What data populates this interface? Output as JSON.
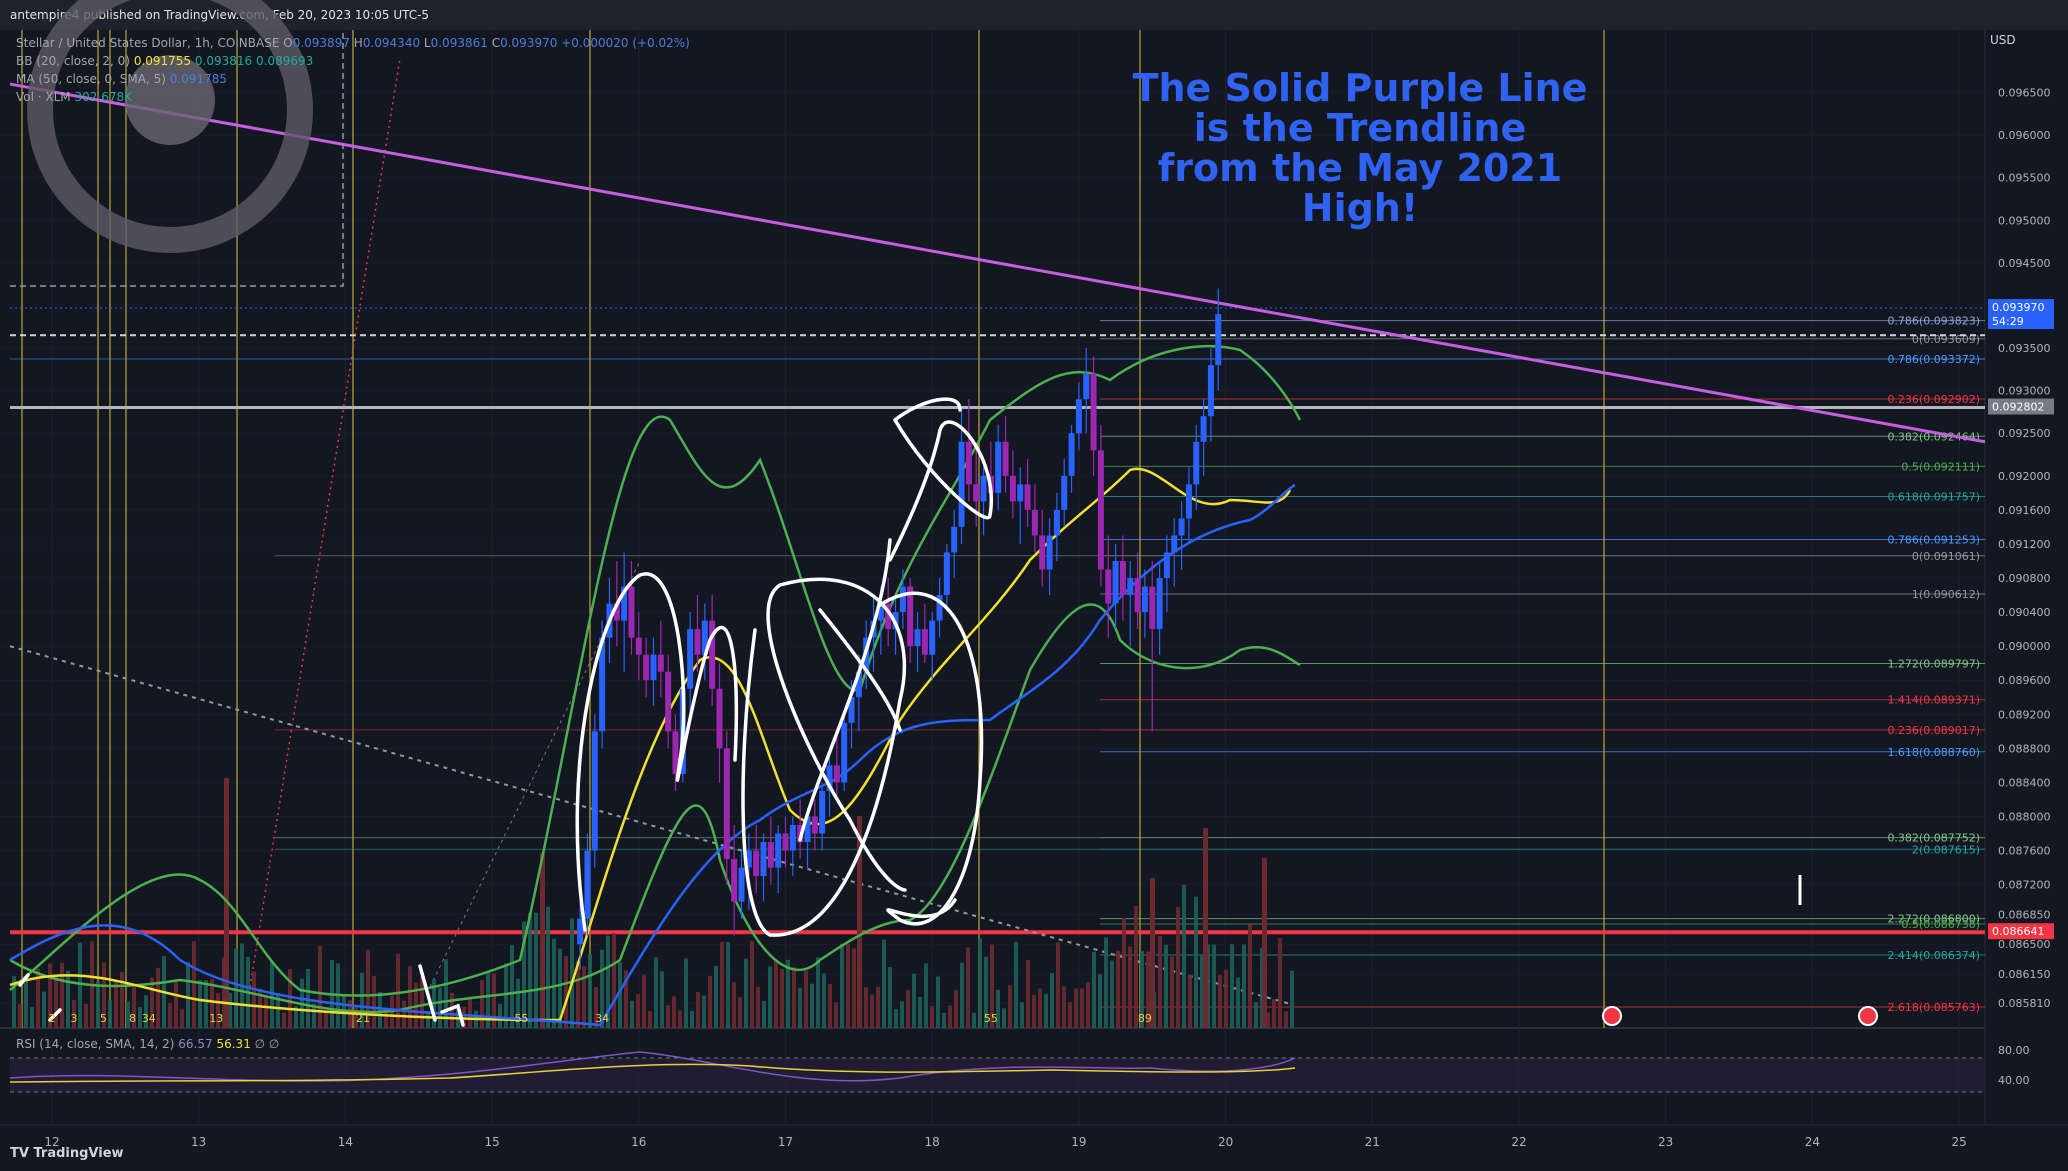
{
  "header": {
    "published": "antempire4 published on TradingView.com, Feb 20, 2023 10:05 UTC-5"
  },
  "legend": {
    "symbol": "Stellar / United States Dollar, 1h, COINBASE",
    "ohlc": {
      "o": "0.093897",
      "h": "0.094340",
      "l": "0.093861",
      "c": "0.093970",
      "change": "+0.000020 (+0.02%)"
    },
    "bb": {
      "label": "BB (20, close, 2, 0)",
      "basis": "0.091755",
      "upper": "0.093816",
      "lower": "0.089693"
    },
    "ma": {
      "label": "MA (50, close, 0, SMA, 5)",
      "value": "0.091785"
    },
    "vol": {
      "label": "Vol · XLM",
      "value": "302.678K"
    }
  },
  "rsi": {
    "label": "RSI (14, close, SMA, 14, 2)",
    "v1": "66.57",
    "v2": "56.31",
    "extra": "∅  ∅",
    "ticks": [
      "80.00",
      "40.00"
    ]
  },
  "annotation": {
    "lines": [
      "The Solid Purple Line",
      "is the Trendline",
      "from the May 2021",
      "High!"
    ]
  },
  "footer": {
    "brand": "TradingView"
  },
  "colors": {
    "bg": "#131722",
    "purple_trend": "#c65ee0",
    "annotation": "#2f62f0",
    "up": "#2962ff",
    "down": "#b22833",
    "bb": "#4caf50",
    "ma": "#f0e130",
    "ma2": "#2962ff"
  },
  "chart_data": {
    "type": "candlestick",
    "currency": "USD",
    "price_axis": {
      "ticks": [
        "0.096500",
        "0.096000",
        "0.095500",
        "0.095000",
        "0.094500",
        "0.093500",
        "0.093000",
        "0.092500",
        "0.092000",
        "0.091600",
        "0.091200",
        "0.090800",
        "0.090400",
        "0.090000",
        "0.089600",
        "0.089200",
        "0.088800",
        "0.088400",
        "0.088000",
        "0.087600",
        "0.087200",
        "0.086850",
        "0.086500",
        "0.086150",
        "0.085810"
      ],
      "range": [
        0.0858,
        0.097
      ]
    },
    "price_tags": [
      {
        "label": "0.093970",
        "sub": "54:29",
        "color": "#2962ff"
      },
      {
        "label": "0.092802",
        "color": "#787b86"
      },
      {
        "label": "0.086641",
        "color": "#f23645"
      }
    ],
    "time_axis": {
      "ticks": [
        "12",
        "13",
        "14",
        "15",
        "16",
        "17",
        "18",
        "19",
        "20",
        "21",
        "22",
        "23",
        "24",
        "25"
      ]
    },
    "fib_labels": [
      {
        "text": "0.786(0.093823)",
        "price": 0.093823,
        "color": "#8fa5d8"
      },
      {
        "text": "0(0.093609)",
        "price": 0.093609,
        "color": "#9598a1"
      },
      {
        "text": "0.786(0.093372)",
        "price": 0.093372,
        "color": "#4c9aff"
      },
      {
        "text": "0.236(0.092902)",
        "price": 0.092902,
        "color": "#f23645"
      },
      {
        "text": "0.382(0.092464)",
        "price": 0.092464,
        "color": "#81c784"
      },
      {
        "text": "0.5(0.092111)",
        "price": 0.092111,
        "color": "#4caf50"
      },
      {
        "text": "0.618(0.091757)",
        "price": 0.091757,
        "color": "#26a69a"
      },
      {
        "text": "0.786(0.091253)",
        "price": 0.091253,
        "color": "#4c9aff"
      },
      {
        "text": "0(0.091061)",
        "price": 0.091061,
        "color": "#9598a1"
      },
      {
        "text": "1(0.090612)",
        "price": 0.090612,
        "color": "#9598a1"
      },
      {
        "text": "1.272(0.089797)",
        "price": 0.089797,
        "color": "#81c784"
      },
      {
        "text": "1.414(0.089371)",
        "price": 0.089371,
        "color": "#f23645"
      },
      {
        "text": "0.236(0.089017)",
        "price": 0.089017,
        "color": "#f23645"
      },
      {
        "text": "1.618(0.088760)",
        "price": 0.08876,
        "color": "#4c9aff"
      },
      {
        "text": "0.382(0.087752)",
        "price": 0.087752,
        "color": "#81c784"
      },
      {
        "text": "2(0.087615)",
        "price": 0.087615,
        "color": "#26a69a"
      },
      {
        "text": "2.272(0.086800)",
        "price": 0.0868,
        "color": "#81c784"
      },
      {
        "text": "0.5(0.086738)",
        "price": 0.086738,
        "color": "#4caf50"
      },
      {
        "text": "2.414(0.086374)",
        "price": 0.086374,
        "color": "#26a69a"
      },
      {
        "text": "2.618(0.085763)",
        "price": 0.085763,
        "color": "#f23645"
      }
    ],
    "fib_counts": [
      {
        "text": "2",
        "day": 12.0
      },
      {
        "text": "3",
        "day": 12.15
      },
      {
        "text": "5",
        "day": 12.35
      },
      {
        "text": "8",
        "day": 12.55
      },
      {
        "text": "34",
        "day": 12.66
      },
      {
        "text": "13",
        "day": 13.12
      },
      {
        "text": "21",
        "day": 14.12
      },
      {
        "text": "55",
        "day": 15.2
      },
      {
        "text": "34",
        "day": 15.75
      },
      {
        "text": "55",
        "day": 18.4
      },
      {
        "text": "89",
        "day": 19.45
      }
    ],
    "candles": [
      [
        15.6,
        0.0865,
        0.087,
        0.0862,
        0.0868
      ],
      [
        15.65,
        0.0868,
        0.0878,
        0.0866,
        0.0876
      ],
      [
        15.7,
        0.0876,
        0.0892,
        0.0874,
        0.089
      ],
      [
        15.75,
        0.089,
        0.0903,
        0.0888,
        0.0901
      ],
      [
        15.8,
        0.0901,
        0.0908,
        0.0898,
        0.0905
      ],
      [
        15.85,
        0.0905,
        0.091,
        0.09,
        0.0903
      ],
      [
        15.9,
        0.0903,
        0.0911,
        0.0897,
        0.0907
      ],
      [
        15.95,
        0.0907,
        0.091,
        0.0899,
        0.0901
      ],
      [
        16.0,
        0.0901,
        0.0904,
        0.0896,
        0.0899
      ],
      [
        16.05,
        0.0899,
        0.0901,
        0.0894,
        0.0896
      ],
      [
        16.1,
        0.0896,
        0.0901,
        0.0893,
        0.0899
      ],
      [
        16.15,
        0.0899,
        0.0903,
        0.0894,
        0.0897
      ],
      [
        16.2,
        0.0897,
        0.0899,
        0.0888,
        0.089
      ],
      [
        16.25,
        0.089,
        0.0892,
        0.0883,
        0.0885
      ],
      [
        16.3,
        0.0885,
        0.0897,
        0.0884,
        0.0895
      ],
      [
        16.35,
        0.0895,
        0.0904,
        0.0892,
        0.0902
      ],
      [
        16.4,
        0.0902,
        0.0906,
        0.0897,
        0.0899
      ],
      [
        16.45,
        0.0899,
        0.0905,
        0.0896,
        0.0903
      ],
      [
        16.5,
        0.0903,
        0.0906,
        0.0893,
        0.0895
      ],
      [
        16.55,
        0.0895,
        0.0898,
        0.0884,
        0.0888
      ],
      [
        16.6,
        0.0888,
        0.089,
        0.0872,
        0.0875
      ],
      [
        16.65,
        0.0875,
        0.0879,
        0.0866,
        0.087
      ],
      [
        16.7,
        0.087,
        0.0876,
        0.0868,
        0.0874
      ],
      [
        16.75,
        0.0874,
        0.0878,
        0.0869,
        0.0876
      ],
      [
        16.8,
        0.0876,
        0.0879,
        0.0871,
        0.0873
      ],
      [
        16.85,
        0.0873,
        0.0878,
        0.087,
        0.0877
      ],
      [
        16.9,
        0.0877,
        0.088,
        0.0872,
        0.0874
      ],
      [
        16.95,
        0.0874,
        0.0879,
        0.0871,
        0.0878
      ],
      [
        17.0,
        0.0878,
        0.088,
        0.0874,
        0.0876
      ],
      [
        17.05,
        0.0876,
        0.088,
        0.0873,
        0.0879
      ],
      [
        17.1,
        0.0879,
        0.0882,
        0.0875,
        0.0877
      ],
      [
        17.15,
        0.0877,
        0.0881,
        0.0874,
        0.088
      ],
      [
        17.2,
        0.088,
        0.0882,
        0.0876,
        0.0878
      ],
      [
        17.25,
        0.0878,
        0.0884,
        0.0876,
        0.0883
      ],
      [
        17.3,
        0.0883,
        0.0887,
        0.088,
        0.0886
      ],
      [
        17.35,
        0.0886,
        0.089,
        0.0882,
        0.0884
      ],
      [
        17.4,
        0.0884,
        0.0892,
        0.0883,
        0.0891
      ],
      [
        17.45,
        0.0891,
        0.0896,
        0.0888,
        0.0894
      ],
      [
        17.5,
        0.0894,
        0.0899,
        0.089,
        0.0897
      ],
      [
        17.55,
        0.0897,
        0.0903,
        0.0895,
        0.0901
      ],
      [
        17.6,
        0.0901,
        0.0906,
        0.0897,
        0.0903
      ],
      [
        17.65,
        0.0903,
        0.0907,
        0.0899,
        0.0905
      ],
      [
        17.7,
        0.0905,
        0.0908,
        0.09,
        0.0902
      ],
      [
        17.75,
        0.0902,
        0.0906,
        0.0899,
        0.0904
      ],
      [
        17.8,
        0.0904,
        0.0909,
        0.0902,
        0.0907
      ],
      [
        17.85,
        0.0907,
        0.0908,
        0.0898,
        0.09
      ],
      [
        17.9,
        0.09,
        0.0904,
        0.0897,
        0.0902
      ],
      [
        17.95,
        0.0902,
        0.0905,
        0.0898,
        0.0899
      ],
      [
        18.0,
        0.0899,
        0.0904,
        0.0896,
        0.0903
      ],
      [
        18.05,
        0.0903,
        0.0908,
        0.0901,
        0.0906
      ],
      [
        18.1,
        0.0906,
        0.0912,
        0.0904,
        0.0911
      ],
      [
        18.15,
        0.0911,
        0.0916,
        0.0908,
        0.0914
      ],
      [
        18.2,
        0.0914,
        0.0928,
        0.0912,
        0.0924
      ],
      [
        18.25,
        0.0924,
        0.0929,
        0.0917,
        0.0919
      ],
      [
        18.3,
        0.0919,
        0.0923,
        0.0914,
        0.0917
      ],
      [
        18.35,
        0.0917,
        0.0922,
        0.0913,
        0.092
      ],
      [
        18.4,
        0.092,
        0.0924,
        0.0915,
        0.0918
      ],
      [
        18.45,
        0.0918,
        0.0926,
        0.0916,
        0.0924
      ],
      [
        18.5,
        0.0924,
        0.0927,
        0.0918,
        0.092
      ],
      [
        18.55,
        0.092,
        0.0923,
        0.0915,
        0.0917
      ],
      [
        18.6,
        0.0917,
        0.0921,
        0.0912,
        0.0919
      ],
      [
        18.65,
        0.0919,
        0.0922,
        0.0914,
        0.0916
      ],
      [
        18.7,
        0.0916,
        0.0919,
        0.0911,
        0.0913
      ],
      [
        18.75,
        0.0913,
        0.0916,
        0.0907,
        0.0909
      ],
      [
        18.8,
        0.0909,
        0.0915,
        0.0906,
        0.0913
      ],
      [
        18.85,
        0.0913,
        0.0918,
        0.091,
        0.0916
      ],
      [
        18.9,
        0.0916,
        0.0922,
        0.0914,
        0.092
      ],
      [
        18.95,
        0.092,
        0.0926,
        0.0918,
        0.0925
      ],
      [
        19.0,
        0.0925,
        0.0931,
        0.0923,
        0.0929
      ],
      [
        19.05,
        0.0929,
        0.0935,
        0.0925,
        0.0932
      ],
      [
        19.1,
        0.0932,
        0.0934,
        0.092,
        0.0923
      ],
      [
        19.15,
        0.0923,
        0.0926,
        0.0907,
        0.0909
      ],
      [
        19.2,
        0.0909,
        0.0913,
        0.0901,
        0.0905
      ],
      [
        19.25,
        0.0905,
        0.0912,
        0.0902,
        0.091
      ],
      [
        19.3,
        0.091,
        0.0913,
        0.0903,
        0.0906
      ],
      [
        19.35,
        0.0906,
        0.091,
        0.09,
        0.0908
      ],
      [
        19.4,
        0.0908,
        0.0911,
        0.0902,
        0.0904
      ],
      [
        19.45,
        0.0904,
        0.0909,
        0.0901,
        0.0907
      ],
      [
        19.5,
        0.0907,
        0.091,
        0.089,
        0.0902
      ],
      [
        19.55,
        0.0902,
        0.091,
        0.0899,
        0.0908
      ],
      [
        19.6,
        0.0908,
        0.0913,
        0.0904,
        0.0911
      ],
      [
        19.65,
        0.0911,
        0.0915,
        0.0907,
        0.0913
      ],
      [
        19.7,
        0.0913,
        0.0917,
        0.0909,
        0.0915
      ],
      [
        19.75,
        0.0915,
        0.0921,
        0.0912,
        0.0919
      ],
      [
        19.8,
        0.0919,
        0.0926,
        0.0916,
        0.0924
      ],
      [
        19.85,
        0.0924,
        0.0929,
        0.092,
        0.0927
      ],
      [
        19.9,
        0.0927,
        0.0935,
        0.0924,
        0.0933
      ],
      [
        19.95,
        0.0933,
        0.0942,
        0.093,
        0.0939
      ]
    ]
  }
}
